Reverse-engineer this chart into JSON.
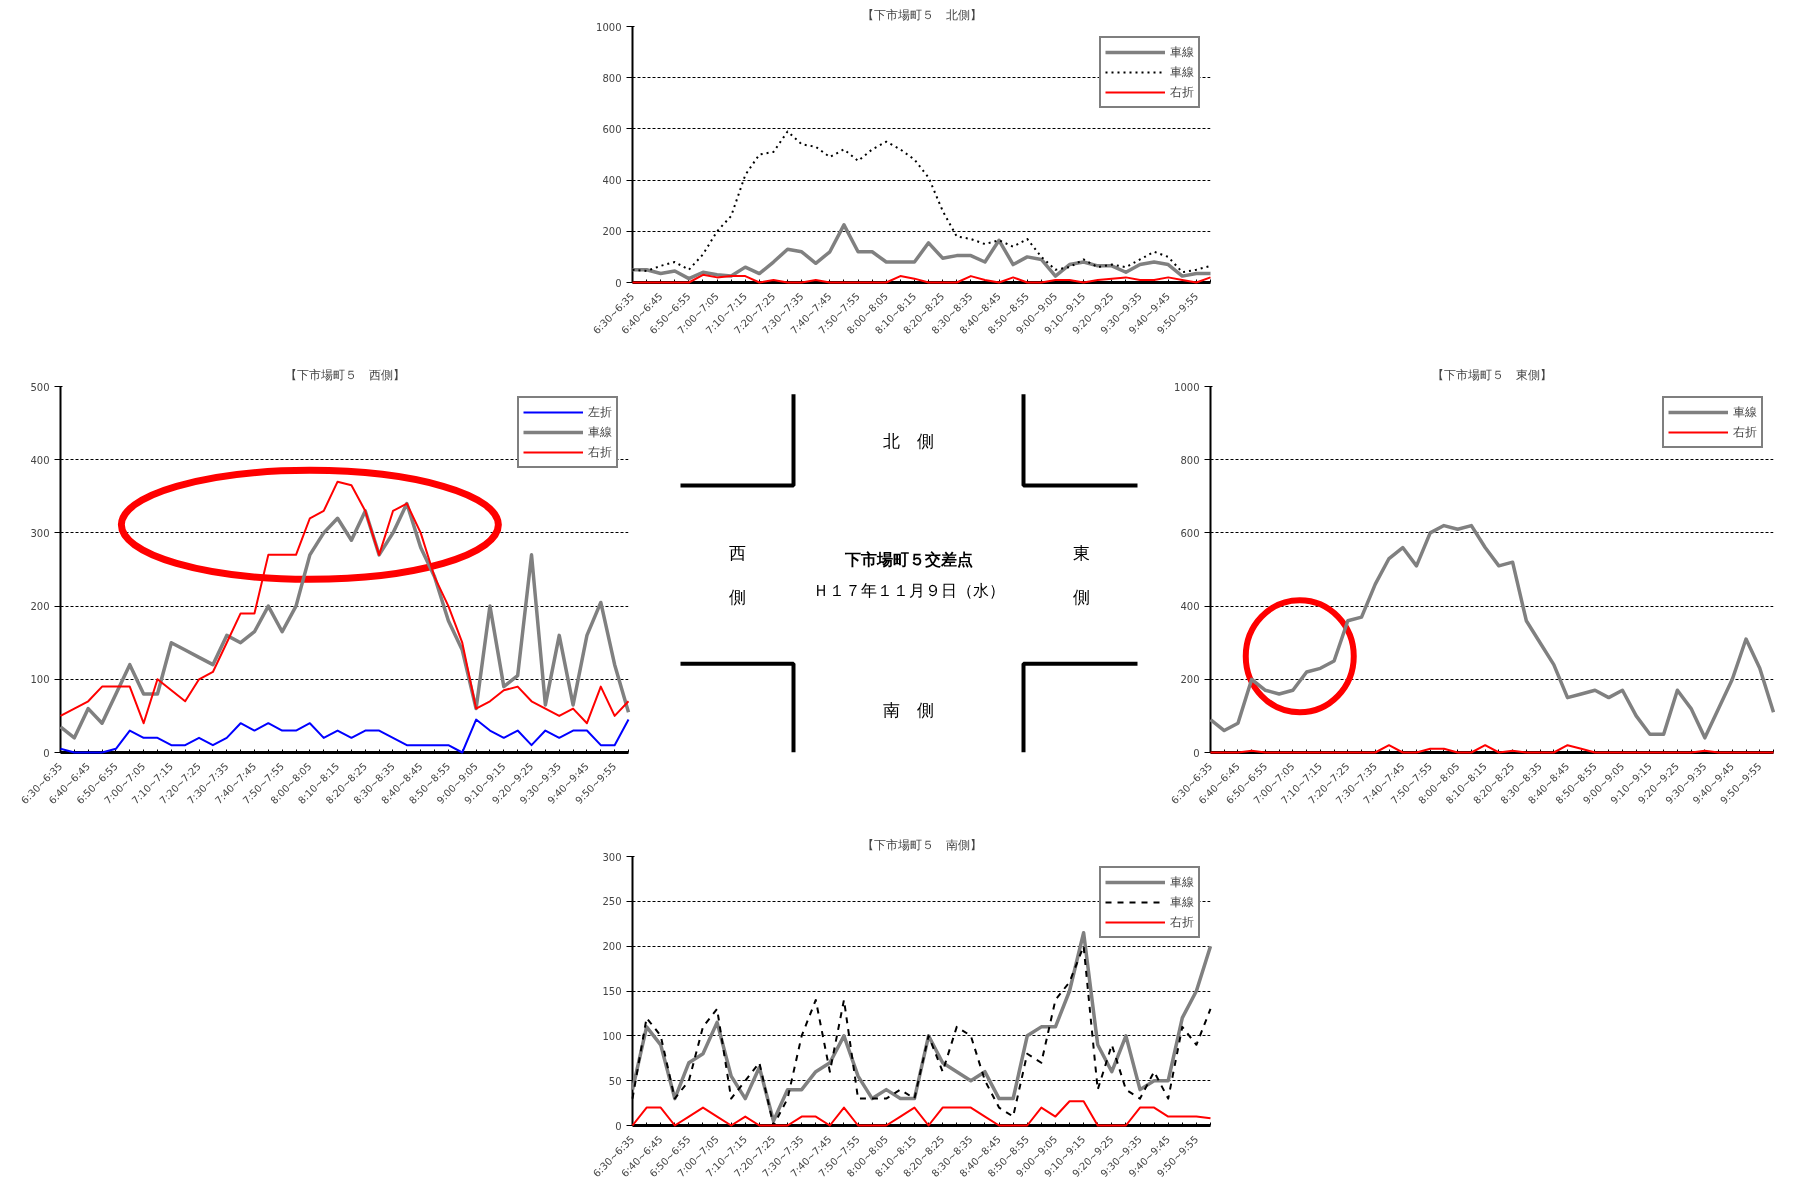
{
  "chart_data": [
    {
      "type": "line",
      "title": "【下市場町５　北側】",
      "categories": [
        "6:30~6:35",
        null,
        "6:40~6:45",
        null,
        "6:50~6:55",
        null,
        "7:00~7:05",
        null,
        "7:10~7:15",
        null,
        "7:20~7:25",
        null,
        "7:30~7:35",
        null,
        "7:40~7:45",
        null,
        "7:50~7:55",
        null,
        "8:00~8:05",
        null,
        "8:10~8:15",
        null,
        "8:20~8:25",
        null,
        "8:30~8:35",
        null,
        "8:40~8:45",
        null,
        "8:50~8:55",
        null,
        "9:00~9:05",
        null,
        "9:10~9:15",
        null,
        "9:20~9:25",
        null,
        "9:30~9:35",
        null,
        "9:40~9:45",
        null,
        "9:50~9:55",
        null
      ],
      "ylim": [
        0,
        1000
      ],
      "yticks": [
        0,
        200,
        400,
        600,
        800,
        1000
      ],
      "grid": "y",
      "legend": "top right",
      "marker": "none",
      "line_style": "solid",
      "series": [
        {
          "name": "車線",
          "color": "#808080",
          "values": [
            50,
            50,
            35,
            45,
            15,
            40,
            30,
            25,
            60,
            35,
            80,
            130,
            120,
            75,
            120,
            225,
            120,
            120,
            80,
            80,
            80,
            155,
            95,
            105,
            105,
            80,
            165,
            70,
            100,
            90,
            25,
            70,
            80,
            65,
            65,
            40,
            70,
            80,
            70,
            25,
            35,
            35
          ]
        },
        {
          "name": "車線",
          "color": "#000000",
          "line_style": "dotted",
          "values": [
            50,
            45,
            65,
            80,
            50,
            110,
            200,
            260,
            420,
            500,
            510,
            590,
            540,
            530,
            490,
            520,
            475,
            520,
            550,
            520,
            480,
            410,
            280,
            180,
            170,
            150,
            165,
            140,
            170,
            100,
            50,
            60,
            90,
            60,
            70,
            60,
            90,
            120,
            100,
            40,
            50,
            65
          ]
        },
        {
          "name": "右折",
          "color": "#ff0000",
          "values": [
            0,
            0,
            0,
            0,
            0,
            30,
            20,
            25,
            25,
            0,
            10,
            0,
            0,
            10,
            0,
            0,
            0,
            0,
            0,
            25,
            15,
            0,
            0,
            0,
            25,
            10,
            0,
            20,
            0,
            0,
            10,
            10,
            0,
            10,
            15,
            20,
            10,
            10,
            20,
            10,
            0,
            20
          ]
        }
      ]
    },
    {
      "type": "line",
      "title": "【下市場町５　西側】",
      "categories": [
        "6:30~6:35",
        null,
        "6:40~6:45",
        null,
        "6:50~6:55",
        null,
        "7:00~7:05",
        null,
        "7:10~7:15",
        null,
        "7:20~7:25",
        null,
        "7:30~7:35",
        null,
        "7:40~7:45",
        null,
        "7:50~7:55",
        null,
        "8:00~8:05",
        null,
        "8:10~8:15",
        null,
        "8:20~8:25",
        null,
        "8:30~8:35",
        null,
        "8:40~8:45",
        null,
        "8:50~8:55",
        null,
        "9:00~9:05",
        null,
        "9:10~9:15",
        null,
        "9:20~9:25",
        null,
        "9:30~9:35",
        null,
        "9:40~9:45",
        null,
        "9:50~9:55",
        null
      ],
      "ylim": [
        0,
        500
      ],
      "yticks": [
        0,
        100,
        200,
        300,
        400,
        500
      ],
      "grid": "y",
      "legend": "top right",
      "marker": "none",
      "line_style": "solid",
      "series": [
        {
          "name": "左折",
          "color": "#0000ff",
          "values": [
            5,
            0,
            0,
            0,
            5,
            30,
            20,
            20,
            10,
            10,
            20,
            10,
            20,
            40,
            30,
            40,
            30,
            30,
            40,
            20,
            30,
            20,
            30,
            30,
            20,
            10,
            10,
            10,
            10,
            0,
            45,
            30,
            20,
            30,
            10,
            30,
            20,
            30,
            30,
            10,
            10,
            45
          ]
        },
        {
          "name": "車線",
          "color": "#808080",
          "values": [
            35,
            20,
            60,
            40,
            80,
            120,
            80,
            80,
            150,
            140,
            130,
            120,
            160,
            150,
            165,
            200,
            165,
            200,
            270,
            300,
            320,
            290,
            330,
            270,
            300,
            340,
            280,
            240,
            180,
            140,
            60,
            200,
            90,
            105,
            270,
            65,
            160,
            65,
            160,
            205,
            120,
            55
          ]
        },
        {
          "name": "右折",
          "color": "#ff0000",
          "values": [
            50,
            60,
            70,
            90,
            90,
            90,
            40,
            100,
            85,
            70,
            100,
            110,
            150,
            190,
            190,
            270,
            270,
            270,
            320,
            330,
            370,
            365,
            330,
            270,
            330,
            340,
            300,
            240,
            200,
            150,
            60,
            70,
            85,
            90,
            70,
            60,
            50,
            60,
            40,
            90,
            50,
            70
          ]
        }
      ]
    },
    {
      "type": "other",
      "title": "下市場町５交差点",
      "subtitle": "Ｈ１７年１１月９日（水）",
      "annotations": [
        "北　側",
        "西側",
        "東側",
        "南　側"
      ]
    },
    {
      "type": "line",
      "title": "【下市場町５　東側】",
      "categories": [
        "6:30~6:35",
        null,
        "6:40~6:45",
        null,
        "6:50~6:55",
        null,
        "7:00~7:05",
        null,
        "7:10~7:15",
        null,
        "7:20~7:25",
        null,
        "7:30~7:35",
        null,
        "7:40~7:45",
        null,
        "7:50~7:55",
        null,
        "8:00~8:05",
        null,
        "8:10~8:15",
        null,
        "8:20~8:25",
        null,
        "8:30~8:35",
        null,
        "8:40~8:45",
        null,
        "8:50~8:55",
        null,
        "9:00~9:05",
        null,
        "9:10~9:15",
        null,
        "9:20~9:25",
        null,
        "9:30~9:35",
        null,
        "9:40~9:45",
        null,
        "9:50~9:55",
        null
      ],
      "ylim": [
        0,
        1000
      ],
      "yticks": [
        0,
        200,
        400,
        600,
        800,
        1000
      ],
      "grid": "y",
      "legend": "top right",
      "marker": "none",
      "line_style": "solid",
      "series": [
        {
          "name": "車線",
          "color": "#808080",
          "values": [
            90,
            60,
            80,
            200,
            170,
            160,
            170,
            220,
            230,
            250,
            360,
            370,
            460,
            530,
            560,
            510,
            600,
            620,
            610,
            620,
            560,
            510,
            520,
            360,
            300,
            240,
            150,
            160,
            170,
            150,
            170,
            100,
            50,
            50,
            170,
            120,
            40,
            120,
            200,
            310,
            230,
            110
          ]
        },
        {
          "name": "右折",
          "color": "#ff0000",
          "values": [
            0,
            0,
            0,
            5,
            0,
            0,
            0,
            0,
            0,
            0,
            0,
            0,
            0,
            20,
            0,
            0,
            10,
            10,
            0,
            0,
            20,
            0,
            5,
            0,
            0,
            0,
            20,
            10,
            0,
            0,
            0,
            0,
            0,
            0,
            0,
            0,
            5,
            0,
            0,
            0,
            0,
            0
          ]
        }
      ]
    },
    {
      "type": "line",
      "title": "【下市場町５　南側】",
      "categories": [
        "6:30~6:35",
        null,
        "6:40~6:45",
        null,
        "6:50~6:55",
        null,
        "7:00~7:05",
        null,
        "7:10~7:15",
        null,
        "7:20~7:25",
        null,
        "7:30~7:35",
        null,
        "7:40~7:45",
        null,
        "7:50~7:55",
        null,
        "8:00~8:05",
        null,
        "8:10~8:15",
        null,
        "8:20~8:25",
        null,
        "8:30~8:35",
        null,
        "8:40~8:45",
        null,
        "8:50~8:55",
        null,
        "9:00~9:05",
        null,
        "9:10~9:15",
        null,
        "9:20~9:25",
        null,
        "9:30~9:35",
        null,
        "9:40~9:45",
        null,
        "9:50~9:55",
        null
      ],
      "ylim": [
        0,
        300
      ],
      "yticks": [
        0,
        50,
        100,
        150,
        200,
        250,
        300
      ],
      "grid": "y",
      "legend": "top right",
      "marker": "none",
      "line_style": "solid",
      "series": [
        {
          "name": "車線",
          "color": "#808080",
          "values": [
            40,
            110,
            90,
            30,
            70,
            80,
            115,
            55,
            30,
            65,
            5,
            40,
            40,
            60,
            70,
            100,
            55,
            30,
            40,
            30,
            30,
            100,
            70,
            60,
            50,
            60,
            30,
            30,
            100,
            110,
            110,
            150,
            215,
            90,
            60,
            100,
            40,
            50,
            50,
            120,
            150,
            200
          ]
        },
        {
          "name": "車線",
          "color": "#000000",
          "line_style": "dashed",
          "values": [
            30,
            120,
            100,
            30,
            50,
            110,
            130,
            30,
            50,
            70,
            0,
            30,
            100,
            140,
            60,
            140,
            30,
            30,
            30,
            40,
            30,
            100,
            60,
            110,
            100,
            50,
            20,
            10,
            80,
            70,
            140,
            160,
            200,
            40,
            90,
            40,
            30,
            60,
            30,
            110,
            90,
            130
          ]
        },
        {
          "name": "右折",
          "color": "#ff0000",
          "values": [
            0,
            20,
            20,
            0,
            10,
            20,
            10,
            0,
            10,
            0,
            0,
            0,
            10,
            10,
            0,
            20,
            0,
            0,
            0,
            10,
            20,
            0,
            20,
            20,
            20,
            10,
            0,
            0,
            0,
            20,
            10,
            27,
            27,
            0,
            0,
            0,
            20,
            20,
            10,
            10,
            10,
            8
          ]
        }
      ]
    }
  ]
}
